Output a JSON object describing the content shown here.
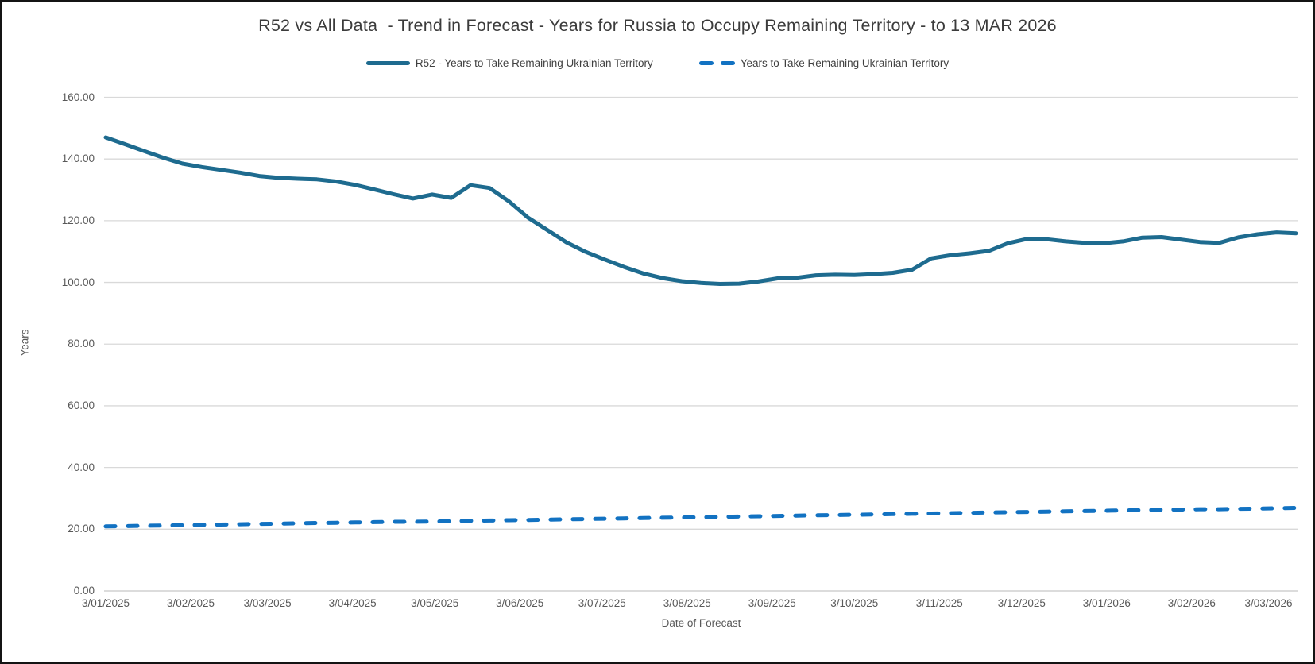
{
  "window": {
    "background": "#ffffff",
    "border_color": "#141414"
  },
  "chart_data": {
    "type": "line",
    "title": "R52 vs All Data  - Trend in Forecast - Years for Russia to Occupy Remaining Territory - to 13 MAR 2026",
    "xlabel": "Date of Forecast",
    "ylabel": "Years",
    "ylim": [
      0,
      160
    ],
    "ytick_step": 20,
    "grid": "horizontal",
    "legend_position": "top-center",
    "y_tick_labels": [
      "0.00",
      "20.00",
      "40.00",
      "60.00",
      "80.00",
      "100.00",
      "120.00",
      "140.00",
      "160.00"
    ],
    "x_ticks": [
      {
        "label": "3/01/2025",
        "day": 0
      },
      {
        "label": "3/02/2025",
        "day": 31
      },
      {
        "label": "3/03/2025",
        "day": 59
      },
      {
        "label": "3/04/2025",
        "day": 90
      },
      {
        "label": "3/05/2025",
        "day": 120
      },
      {
        "label": "3/06/2025",
        "day": 151
      },
      {
        "label": "3/07/2025",
        "day": 181
      },
      {
        "label": "3/08/2025",
        "day": 212
      },
      {
        "label": "3/09/2025",
        "day": 243
      },
      {
        "label": "3/10/2025",
        "day": 273
      },
      {
        "label": "3/11/2025",
        "day": 304
      },
      {
        "label": "3/12/2025",
        "day": 334
      },
      {
        "label": "3/01/2026",
        "day": 365
      },
      {
        "label": "3/02/2026",
        "day": 396
      },
      {
        "label": "3/03/2026",
        "day": 424
      }
    ],
    "x_domain_days": [
      0,
      434
    ],
    "sample_days": [
      0,
      7,
      14,
      21,
      28,
      35,
      42,
      49,
      56,
      63,
      70,
      77,
      84,
      91,
      98,
      105,
      112,
      119,
      126,
      133,
      140,
      147,
      154,
      161,
      168,
      175,
      182,
      189,
      196,
      203,
      210,
      217,
      224,
      231,
      238,
      245,
      252,
      259,
      266,
      273,
      280,
      287,
      294,
      301,
      308,
      315,
      322,
      329,
      336,
      343,
      350,
      357,
      364,
      371,
      378,
      385,
      392,
      399,
      406,
      413,
      420,
      427,
      434
    ],
    "series": [
      {
        "name": "R52 - Years to Take Remaining Ukrainian Territory",
        "style": "solid",
        "color": "#1E6B8F",
        "values": [
          147.0,
          144.8,
          142.6,
          140.4,
          138.5,
          137.4,
          136.5,
          135.6,
          134.5,
          133.9,
          133.6,
          133.4,
          132.7,
          131.6,
          130.1,
          128.6,
          127.2,
          128.5,
          127.4,
          131.5,
          130.6,
          126.3,
          121.0,
          117.0,
          113.0,
          109.9,
          107.4,
          105.0,
          102.9,
          101.4,
          100.4,
          99.8,
          99.5,
          99.6,
          100.3,
          101.3,
          101.5,
          102.3,
          102.5,
          102.4,
          102.7,
          103.1,
          104.1,
          107.8,
          108.8,
          109.4,
          110.2,
          112.7,
          114.1,
          114.0,
          113.3,
          112.8,
          112.7,
          113.3,
          114.5,
          114.7,
          113.9,
          113.1,
          112.8,
          114.6,
          115.6,
          116.2,
          115.9
        ]
      },
      {
        "name": "Years to Take Remaining Ukrainian Territory",
        "style": "dashed",
        "color": "#1272C2",
        "values": [
          20.9,
          21.0,
          21.1,
          21.2,
          21.3,
          21.4,
          21.5,
          21.6,
          21.7,
          21.8,
          21.9,
          22.0,
          22.1,
          22.2,
          22.3,
          22.4,
          22.4,
          22.5,
          22.6,
          22.7,
          22.8,
          22.9,
          23.0,
          23.1,
          23.2,
          23.3,
          23.4,
          23.5,
          23.6,
          23.7,
          23.8,
          23.9,
          24.0,
          24.1,
          24.2,
          24.3,
          24.4,
          24.5,
          24.6,
          24.7,
          24.8,
          24.9,
          25.0,
          25.1,
          25.2,
          25.3,
          25.4,
          25.5,
          25.6,
          25.7,
          25.8,
          25.9,
          26.0,
          26.1,
          26.2,
          26.3,
          26.4,
          26.5,
          26.5,
          26.6,
          26.7,
          26.8,
          26.9
        ]
      }
    ],
    "colors": {
      "gridline": "#D9D9D9",
      "axis_line": "#C6C6C6",
      "tick_text": "#595959",
      "title_text": "#3B3B3B"
    }
  }
}
